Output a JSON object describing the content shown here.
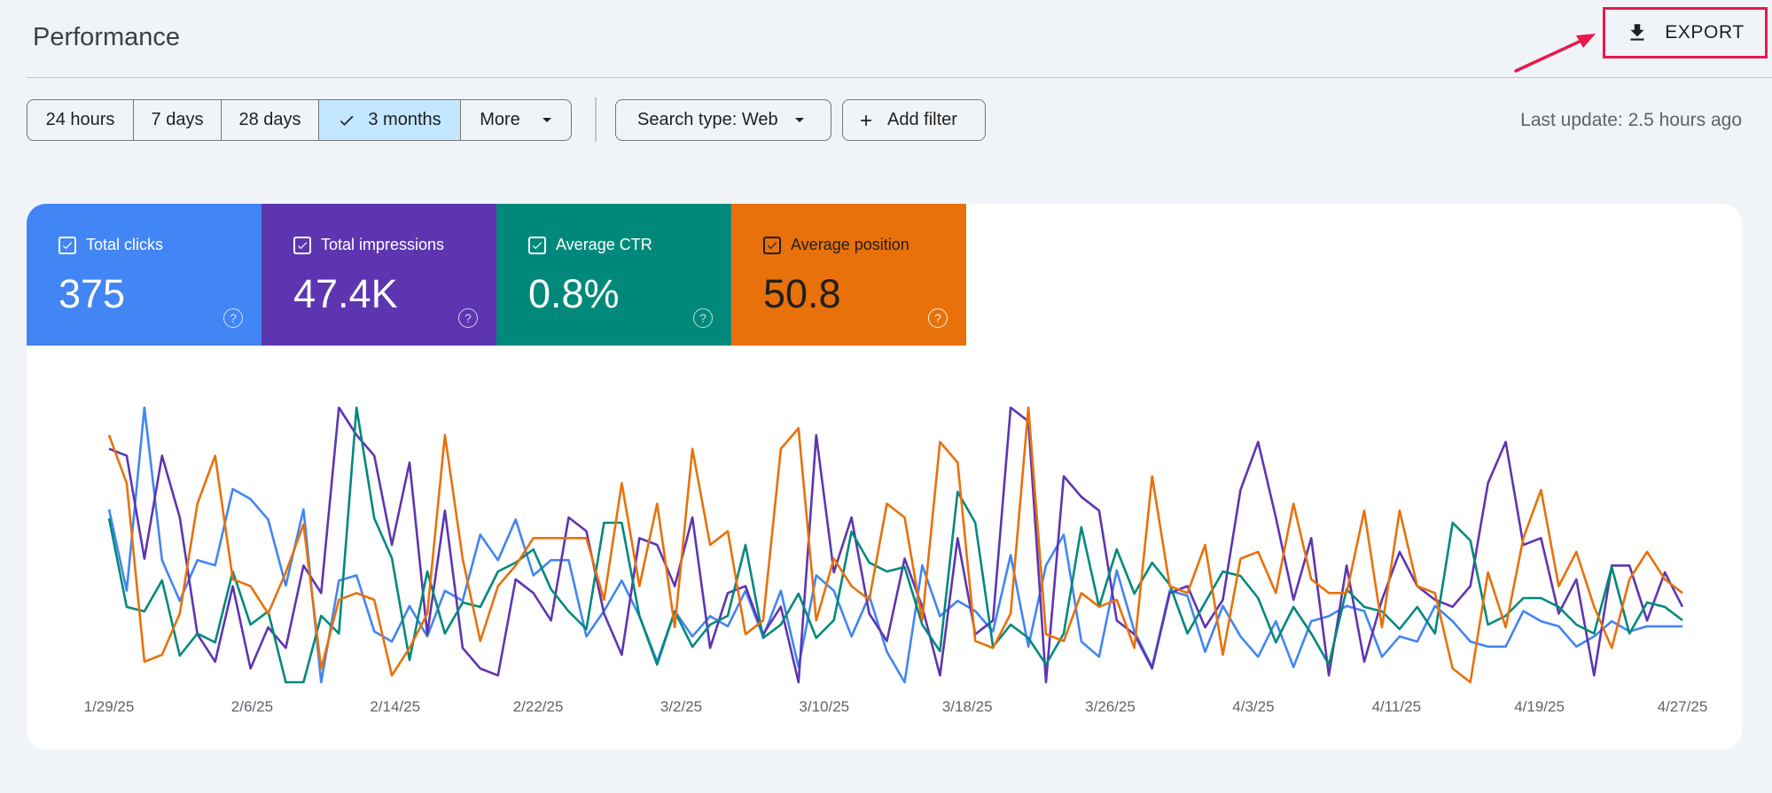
{
  "header": {
    "title": "Performance",
    "export_label": "EXPORT"
  },
  "filters": {
    "ranges": [
      {
        "label": "24 hours",
        "selected": false
      },
      {
        "label": "7 days",
        "selected": false
      },
      {
        "label": "28 days",
        "selected": false
      },
      {
        "label": "3 months",
        "selected": true
      },
      {
        "label": "More",
        "selected": false
      }
    ],
    "search_type_label": "Search type: Web",
    "add_filter_label": "Add filter",
    "last_update": "Last update: 2.5 hours ago"
  },
  "metrics": [
    {
      "label": "Total clicks",
      "value": "375",
      "color": "#4285f4"
    },
    {
      "label": "Total impressions",
      "value": "47.4K",
      "color": "#5e35b1"
    },
    {
      "label": "Average CTR",
      "value": "0.8%",
      "color": "#00897b"
    },
    {
      "label": "Average position",
      "value": "50.8",
      "color": "#e8710a"
    }
  ],
  "icons": [
    "download-icon",
    "check-icon",
    "caret-down-icon",
    "plus-icon",
    "checkbox-checked-icon",
    "help-icon",
    "annotation-arrow"
  ],
  "chart_data": {
    "type": "line",
    "x_tick_labels": [
      "1/29/25",
      "2/6/25",
      "2/14/25",
      "2/22/25",
      "3/2/25",
      "3/10/25",
      "3/18/25",
      "3/26/25",
      "4/3/25",
      "4/11/25",
      "4/19/25",
      "4/27/25"
    ],
    "series": [
      {
        "name": "Total clicks",
        "color": "#4285f4",
        "values": [
          54,
          47,
          38,
          38,
          49,
          67,
          55,
          60,
          42,
          46,
          76,
          54,
          46,
          53,
          38,
          48,
          53,
          48,
          43,
          55,
          77,
          60,
          53,
          75,
          35,
          42,
          70,
          42,
          74,
          52,
          34,
          38,
          48,
          57,
          52,
          48,
          73,
          30,
          47,
          47,
          67,
          62,
          44,
          51,
          41,
          44,
          52,
          51,
          75,
          44,
          52,
          43,
          54,
          60,
          79,
          62,
          36,
          62,
          82,
          51,
          62,
          35,
          70,
          34,
          93,
          49,
          56,
          44,
          38,
          39,
          44,
          67,
          57,
          48,
          27,
          44,
          38,
          20,
          27,
          41,
          42,
          34,
          44,
          48,
          43,
          30,
          20,
          31,
          21,
          31,
          25,
          45,
          45,
          35,
          32,
          29,
          46,
          46,
          53,
          58,
          45,
          36,
          38,
          49,
          49,
          58,
          35,
          49,
          53,
          55,
          35,
          49,
          52,
          56,
          44,
          53,
          39,
          46,
          22,
          40,
          40,
          64,
          64,
          52,
          84,
          20,
          56,
          52,
          32,
          32,
          41,
          58,
          52,
          55,
          40,
          32,
          32,
          30,
          49,
          41,
          33,
          39,
          30,
          36,
          32,
          30,
          18,
          42,
          41,
          39,
          60,
          52,
          47,
          40,
          28,
          54,
          55,
          45,
          23,
          34,
          29,
          49,
          51,
          55,
          53,
          47,
          45,
          34,
          40,
          20,
          38,
          30,
          43,
          40,
          51,
          56,
          43,
          41,
          46,
          55,
          55,
          48,
          34,
          40,
          37,
          35,
          53,
          42,
          52,
          53,
          36,
          41,
          34,
          37,
          30,
          49,
          38,
          48,
          41,
          27,
          48,
          44,
          23,
          20,
          24,
          36,
          40,
          44,
          62,
          30,
          40,
          58,
          30,
          50,
          58,
          47,
          34,
          45,
          36,
          29,
          29,
          37,
          38,
          49,
          53,
          54,
          28,
          46,
          31,
          40,
          47,
          44,
          18,
          36,
          41,
          51,
          54,
          57,
          62,
          33,
          35,
          44,
          50,
          42,
          39,
          33,
          34,
          42,
          30,
          50,
          51,
          48,
          30,
          32,
          29,
          30,
          27,
          47,
          50,
          55,
          53,
          31,
          47,
          42,
          26,
          20,
          47,
          32,
          38,
          45,
          38,
          20,
          29,
          36,
          37,
          55,
          44,
          55,
          63,
          48,
          39,
          46,
          36,
          38,
          44,
          42,
          35,
          33,
          42,
          43,
          53,
          43,
          44,
          49,
          53,
          33,
          48,
          49,
          28,
          28,
          38,
          50,
          55,
          33,
          30,
          32,
          38,
          43,
          54,
          58,
          36,
          44,
          50,
          44,
          51,
          20,
          36,
          48,
          36,
          23,
          44,
          40,
          40,
          39,
          28,
          52,
          34,
          18,
          28,
          32,
          40,
          37,
          36,
          38,
          58,
          46,
          51,
          51,
          31,
          41,
          43,
          40,
          46,
          48,
          44,
          33,
          50,
          40,
          26,
          35,
          24,
          26,
          33,
          44,
          39,
          38,
          25,
          40,
          56,
          42,
          31,
          41,
          47,
          28,
          33,
          54,
          54,
          44,
          38,
          24,
          35,
          25,
          47,
          54,
          56,
          24,
          40,
          58,
          44,
          33,
          42,
          29,
          17,
          17,
          20,
          38,
          44,
          45,
          52,
          55,
          29,
          33,
          44,
          32,
          35,
          36,
          34,
          34,
          47,
          33,
          45,
          44,
          28,
          34,
          36,
          58,
          47,
          39,
          26,
          35,
          40,
          28,
          31,
          36,
          21,
          25,
          26,
          36,
          45,
          43,
          52,
          48,
          28,
          37,
          33,
          41,
          35,
          41,
          50,
          34,
          23,
          31,
          34,
          24,
          23,
          27,
          36,
          33,
          24,
          34,
          37,
          28,
          26,
          38,
          33,
          44,
          38,
          34,
          41,
          34,
          27,
          27,
          34,
          33,
          46,
          41,
          47,
          46,
          21,
          23,
          23,
          38,
          30,
          26,
          37,
          27,
          29,
          45,
          44,
          32,
          26,
          29,
          32,
          38,
          31,
          40,
          30,
          44,
          44,
          30,
          33,
          49,
          45,
          33,
          27,
          17,
          25,
          37,
          38,
          28,
          27,
          34,
          45,
          42,
          29,
          31,
          32,
          21,
          25,
          27,
          27,
          41,
          39,
          28,
          45,
          47,
          43,
          30,
          36,
          38,
          25,
          22,
          15,
          28,
          19,
          16,
          22,
          35,
          27,
          27,
          36,
          41,
          37,
          29,
          38,
          44,
          42,
          39,
          19,
          25,
          38,
          18,
          21,
          24,
          32,
          32,
          32,
          38,
          35,
          23,
          21,
          38,
          33,
          21,
          30,
          43,
          40,
          35,
          26,
          22,
          21,
          23,
          20,
          30,
          33,
          45,
          38,
          29,
          32,
          38,
          38,
          29,
          27,
          36,
          40,
          41,
          33,
          24,
          28,
          24,
          28,
          24,
          18,
          17,
          26,
          23,
          26,
          43,
          41,
          38,
          37,
          38,
          38,
          34,
          25,
          40,
          27,
          27,
          23,
          22,
          36,
          44,
          42,
          31,
          29,
          32,
          38,
          37,
          40,
          23,
          22,
          32,
          29,
          24,
          43,
          30,
          35,
          36,
          37,
          43,
          44,
          25,
          26,
          31,
          43,
          45,
          45,
          41,
          42,
          33,
          31,
          33,
          26,
          19,
          27,
          38,
          43,
          47,
          41,
          35,
          37,
          31,
          36,
          33,
          33,
          22,
          20,
          24,
          24,
          25,
          38,
          45,
          38,
          35,
          34,
          24,
          33,
          22,
          23,
          37,
          43,
          49,
          45,
          31,
          21,
          27,
          30,
          36,
          35,
          22,
          28,
          32,
          25,
          24,
          33,
          38,
          21,
          31,
          29,
          23,
          23,
          41,
          38,
          39,
          35,
          33,
          27,
          31,
          35,
          36,
          20,
          30,
          33,
          28,
          38,
          41,
          34,
          31,
          28,
          39,
          37,
          20,
          25,
          34,
          25,
          29,
          25,
          27,
          35,
          32,
          27,
          35,
          44,
          42,
          40,
          34,
          35,
          30,
          43,
          36,
          33,
          19,
          21,
          33,
          25,
          20,
          21,
          20,
          29,
          38,
          44,
          45,
          44,
          47,
          45,
          47,
          48,
          40,
          23,
          26,
          35,
          33,
          37,
          29,
          19,
          27,
          26,
          35,
          44,
          44,
          33,
          29,
          44,
          49,
          42,
          38,
          34,
          35,
          41,
          43,
          40,
          27,
          34,
          36,
          25,
          17,
          21,
          18,
          36,
          37,
          49,
          46,
          44,
          49,
          43,
          31,
          31,
          27,
          32,
          33,
          31,
          39,
          40,
          35,
          36,
          26,
          25,
          30,
          28,
          18,
          23,
          38,
          42,
          34,
          34,
          36,
          26,
          24,
          24,
          26,
          25,
          22,
          25,
          37,
          45,
          41,
          35,
          34,
          22,
          27,
          27,
          25,
          28,
          31,
          23,
          29,
          42,
          49,
          45,
          38,
          34,
          30,
          38,
          44,
          43,
          36,
          29,
          26,
          16,
          22,
          30,
          29,
          30,
          38,
          29,
          31,
          32,
          37,
          27,
          25,
          42,
          38,
          29,
          23,
          23,
          27,
          33,
          30,
          31,
          31,
          25,
          22,
          30,
          36,
          38,
          46,
          48,
          43,
          38,
          38,
          25,
          25,
          38,
          36,
          37,
          37,
          34,
          35,
          37,
          41,
          33,
          23,
          37,
          37,
          26,
          34,
          36,
          28,
          21,
          32,
          35,
          32,
          34,
          37,
          36,
          38,
          32,
          26,
          29,
          27,
          22,
          21,
          23,
          22,
          32,
          41,
          37,
          32,
          26,
          28,
          30,
          35,
          30,
          25,
          24,
          30,
          33,
          27,
          19,
          28,
          34,
          39,
          40,
          40,
          31,
          29,
          31,
          29,
          37,
          35,
          28,
          29,
          32,
          34,
          32,
          24,
          23,
          21,
          20,
          25,
          37,
          36,
          31,
          31,
          39,
          45,
          44,
          43,
          35,
          26,
          27,
          31,
          32,
          32,
          26,
          28,
          27,
          32,
          39,
          39,
          35,
          36,
          39,
          36,
          39,
          33,
          29,
          23,
          22,
          30,
          33,
          35,
          37,
          36,
          31,
          28,
          33,
          30,
          27,
          33,
          38,
          32,
          31,
          35,
          28,
          27,
          31,
          32,
          32,
          25,
          26,
          34,
          42,
          41,
          32,
          32,
          33,
          34,
          34,
          36,
          40,
          36,
          24,
          23,
          29,
          37,
          36,
          25,
          33,
          39,
          35,
          33,
          32,
          33,
          34,
          36,
          34,
          26,
          34,
          38,
          36,
          33,
          31,
          31,
          34,
          33,
          34,
          36,
          36,
          28,
          27,
          31,
          27,
          20,
          21,
          35,
          44,
          37,
          25,
          26,
          31,
          31,
          34,
          34,
          33,
          36,
          33,
          22,
          26,
          33,
          31,
          29,
          29,
          35,
          35,
          38,
          39,
          35,
          39,
          34,
          28,
          31,
          34,
          34,
          28,
          27,
          28,
          31,
          34,
          33,
          29,
          28,
          34,
          36,
          35,
          32,
          29,
          29,
          27,
          30,
          35,
          37,
          29,
          26,
          28,
          32,
          36,
          34,
          35,
          33,
          30,
          27,
          24,
          22,
          25,
          32,
          32,
          33,
          32,
          26,
          28,
          37,
          43,
          38,
          36,
          37,
          33,
          29,
          27,
          28,
          30,
          27,
          26,
          29,
          33,
          34,
          33,
          33,
          31,
          28,
          26,
          31,
          33,
          27,
          27,
          36,
          34,
          30,
          29,
          29,
          29,
          29,
          32,
          33,
          35,
          36,
          33,
          27,
          24,
          28,
          32,
          30,
          31,
          37,
          33,
          27,
          28,
          30,
          34,
          32,
          31,
          34,
          32,
          27,
          30,
          35,
          31,
          29,
          32,
          33,
          31,
          27,
          27,
          30,
          31,
          32,
          35,
          39,
          36,
          30,
          30,
          31,
          29,
          28,
          29,
          31,
          30,
          28,
          29,
          31,
          33,
          32,
          30,
          33,
          35,
          33,
          30,
          29,
          29,
          29,
          31,
          34,
          33,
          29,
          27,
          27,
          31,
          34,
          32,
          29,
          28,
          29,
          31,
          33,
          32,
          30,
          31,
          31,
          29,
          29,
          31,
          33,
          34,
          32,
          28,
          27,
          30,
          32,
          32,
          30,
          30,
          32,
          32,
          30,
          29,
          30,
          32,
          34,
          33,
          30,
          29,
          29,
          31,
          32,
          32,
          31,
          30,
          30,
          30,
          31,
          32,
          32,
          31,
          30,
          30,
          31,
          31,
          31,
          31,
          31,
          31,
          31,
          30,
          30,
          31,
          31,
          31,
          31,
          31,
          31,
          31,
          31,
          31,
          31,
          31,
          31,
          31,
          31,
          31,
          31,
          31,
          31,
          31,
          31,
          31,
          31,
          31,
          31,
          31,
          31
        ]
      },
      {
        "name": "Total impressions",
        "color": "#5e35b1",
        "values": []
      },
      {
        "name": "Average CTR",
        "color": "#00897b",
        "values": []
      },
      {
        "name": "Average position",
        "color": "#e8710a",
        "values": []
      }
    ]
  }
}
